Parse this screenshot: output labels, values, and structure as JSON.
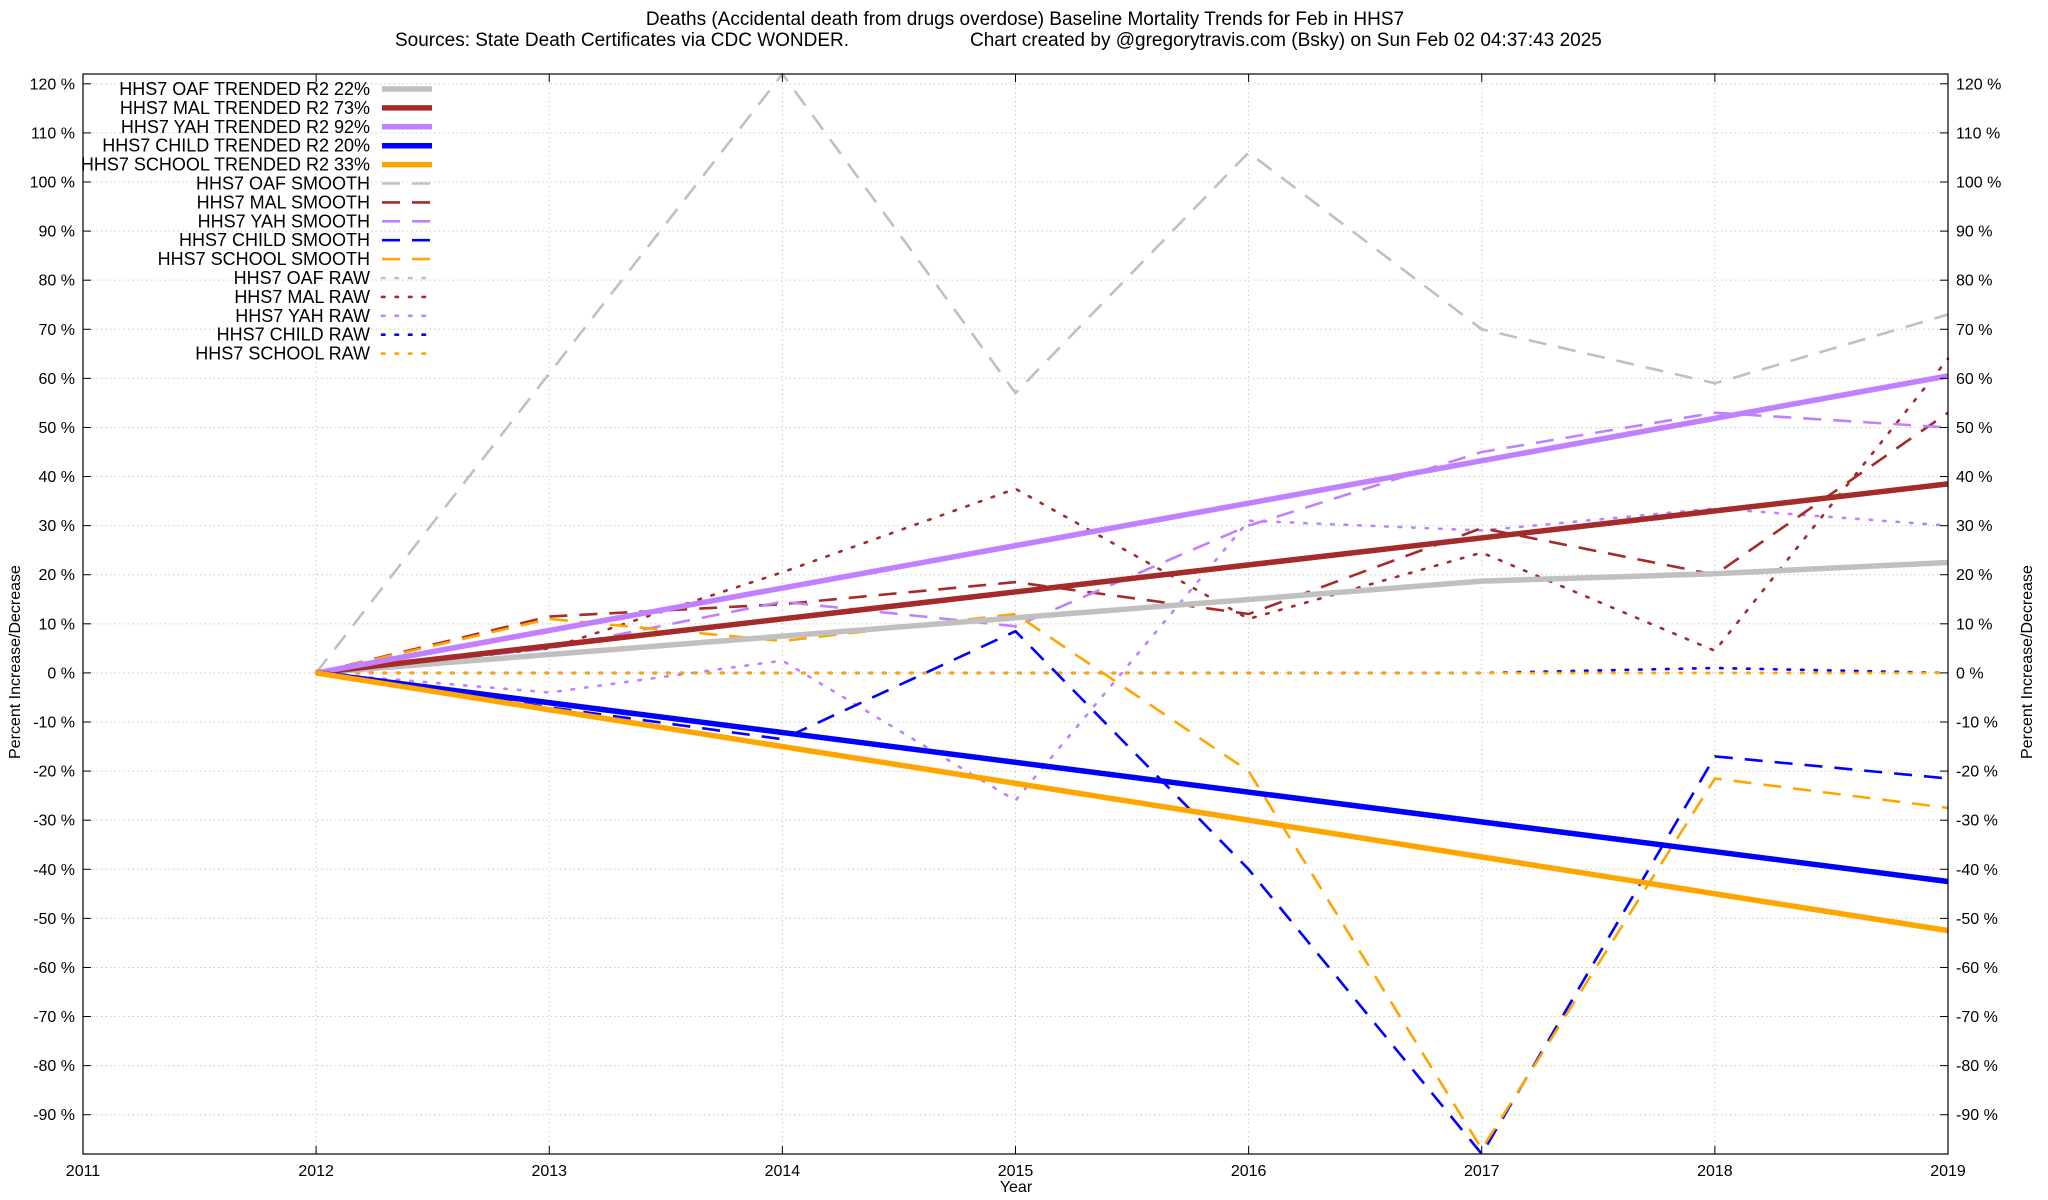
{
  "chart_data": {
    "type": "line",
    "title_line1": "Deaths (Accidental death from drugs overdose)  Baseline Mortality Trends for Feb in HHS7",
    "title_line2_left": "Sources: State Death Certificates via CDC WONDER.",
    "title_line2_right": "Chart created by @gregorytravis.com (Bsky) on Sun Feb 02 04:37:43 2025",
    "xlabel": "Year",
    "ylabel_left": "Percent Increase/Decrease",
    "ylabel_right": "Percent Increase/Decrease",
    "xlim": [
      2011,
      2019
    ],
    "ylim": [
      -98,
      122
    ],
    "x_ticks": [
      2011,
      2012,
      2013,
      2014,
      2015,
      2016,
      2017,
      2018,
      2019
    ],
    "x_tick_labels": [
      "2011",
      "2012",
      "2013",
      "2014",
      "2015",
      "2016",
      "2017",
      "2018",
      "2019"
    ],
    "y_ticks": [
      120,
      110,
      100,
      90,
      80,
      70,
      60,
      50,
      40,
      30,
      20,
      10,
      0,
      -10,
      -20,
      -30,
      -40,
      -50,
      -60,
      -70,
      -80,
      -90
    ],
    "y_tick_labels": [
      "120 %",
      "110 %",
      "100 %",
      "90 %",
      "80 %",
      "70 %",
      "60 %",
      "50 %",
      "40 %",
      "30 %",
      "20 %",
      "10 %",
      "0 %",
      "-10 %",
      "-20 %",
      "-30 %",
      "-40 %",
      "-50 %",
      "-60 %",
      "-70 %",
      "-80 %",
      "-90 %"
    ],
    "grid": true,
    "legend_position": "top-left",
    "series": [
      {
        "name": "HHS7 OAF TRENDED R2  22%",
        "style": "solid",
        "color": "#c0c0c0",
        "x": [
          2012,
          2017,
          2018,
          2019
        ],
        "values": [
          0,
          18.7,
          20.2,
          22.5
        ]
      },
      {
        "name": "HHS7 MAL TRENDED R2  73%",
        "style": "solid",
        "color": "#a52a2a",
        "x": [
          2012,
          2019
        ],
        "values": [
          0,
          38.5
        ]
      },
      {
        "name": "HHS7 YAH TRENDED R2  92%",
        "style": "solid",
        "color": "#c080ff",
        "x": [
          2012,
          2019
        ],
        "values": [
          0,
          60.5
        ]
      },
      {
        "name": "HHS7 CHILD TRENDED R2  20%",
        "style": "solid",
        "color": "#0000ff",
        "x": [
          2012,
          2019
        ],
        "values": [
          0,
          -42.5
        ]
      },
      {
        "name": "HHS7 SCHOOL TRENDED R2  33%",
        "style": "solid",
        "color": "#ffa500",
        "x": [
          2012,
          2019
        ],
        "values": [
          0,
          -52.5
        ]
      },
      {
        "name": "HHS7 OAF SMOOTH",
        "style": "dashed",
        "color": "#c0c0c0",
        "x": [
          2012,
          2014,
          2015,
          2016,
          2017,
          2018,
          2019
        ],
        "values": [
          0,
          122,
          57,
          106,
          70,
          59,
          73
        ]
      },
      {
        "name": "HHS7 MAL SMOOTH",
        "style": "dashed",
        "color": "#a52a2a",
        "x": [
          2012,
          2013,
          2014,
          2015,
          2016,
          2017,
          2018,
          2019
        ],
        "values": [
          0,
          11.5,
          14,
          18.5,
          12,
          29.5,
          20,
          53
        ]
      },
      {
        "name": "HHS7 YAH SMOOTH",
        "style": "dashed",
        "color": "#c080ff",
        "x": [
          2012,
          2013,
          2014,
          2015,
          2016,
          2017,
          2018,
          2019
        ],
        "values": [
          0,
          5,
          14.5,
          9.5,
          30,
          45,
          53,
          50
        ]
      },
      {
        "name": "HHS7 CHILD SMOOTH",
        "style": "dashed",
        "color": "#0000ff",
        "x": [
          2012,
          2013,
          2014,
          2015,
          2016,
          2017,
          2018,
          2019
        ],
        "values": [
          0,
          -7,
          -13.5,
          8.5,
          -40,
          -98,
          -17,
          -21.5
        ]
      },
      {
        "name": "HHS7 SCHOOL SMOOTH",
        "style": "dashed",
        "color": "#ffa500",
        "x": [
          2012,
          2013,
          2014,
          2015,
          2016,
          2017,
          2018,
          2019
        ],
        "values": [
          0,
          11,
          6.5,
          12,
          -20,
          -97,
          -21.5,
          -27.5
        ]
      },
      {
        "name": "HHS7 OAF RAW",
        "style": "dotted",
        "color": "#c0c0c0",
        "x": [
          2012,
          2013,
          2014,
          2015,
          2016,
          2017,
          2018,
          2019
        ],
        "values": [
          0,
          0,
          0,
          0,
          0,
          0,
          0,
          0
        ]
      },
      {
        "name": "HHS7 MAL RAW",
        "style": "dotted",
        "color": "#a52a2a",
        "x": [
          2012,
          2013,
          2014,
          2015,
          2016,
          2017,
          2018,
          2019
        ],
        "values": [
          0,
          5,
          20.5,
          37.5,
          11,
          24.5,
          4.5,
          64
        ]
      },
      {
        "name": "HHS7 YAH RAW",
        "style": "dotted",
        "color": "#c080ff",
        "x": [
          2012,
          2013,
          2014,
          2015,
          2016,
          2017,
          2018,
          2019
        ],
        "values": [
          0,
          -4,
          2.5,
          -26,
          31,
          29,
          33.5,
          30
        ]
      },
      {
        "name": "HHS7 CHILD RAW",
        "style": "dotted",
        "color": "#0000ff",
        "x": [
          2012,
          2013,
          2014,
          2015,
          2016,
          2017,
          2018,
          2019
        ],
        "values": [
          0,
          0,
          0,
          0,
          0,
          0,
          1,
          0
        ]
      },
      {
        "name": "HHS7 SCHOOL RAW",
        "style": "dotted",
        "color": "#ffa500",
        "x": [
          2012,
          2013,
          2014,
          2015,
          2016,
          2017,
          2018,
          2019
        ],
        "values": [
          0,
          0,
          0,
          0,
          0,
          0,
          0,
          0
        ]
      }
    ]
  }
}
